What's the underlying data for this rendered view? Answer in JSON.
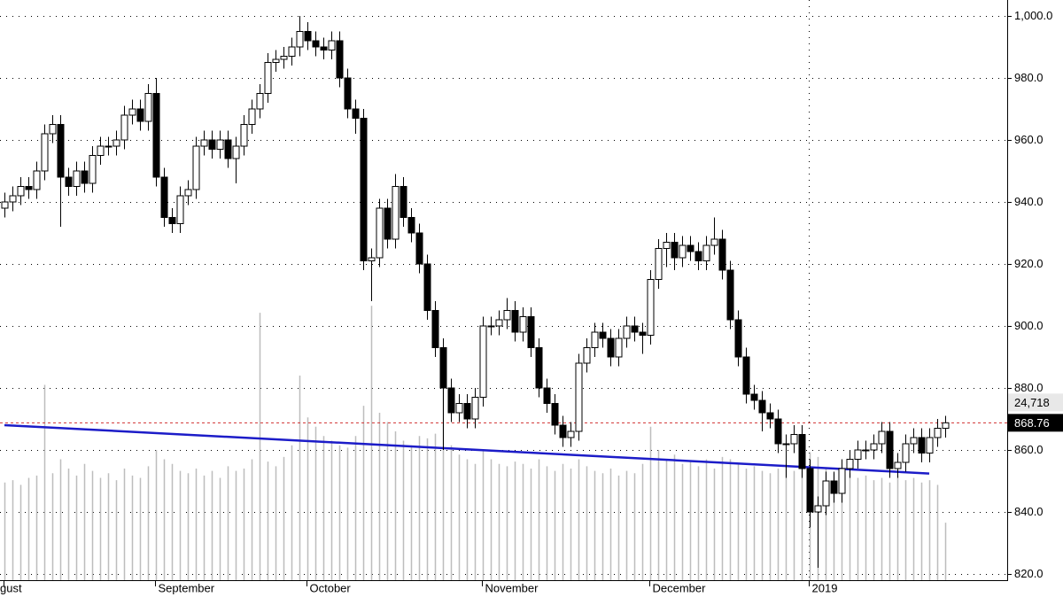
{
  "chart_data": {
    "type": "candlestick",
    "categories": [
      "gust",
      null,
      null,
      null,
      null,
      null,
      null,
      null,
      null,
      null,
      null,
      null,
      null,
      null,
      null,
      null,
      null,
      null,
      null,
      "September",
      null,
      null,
      null,
      null,
      null,
      null,
      null,
      null,
      null,
      null,
      null,
      null,
      null,
      null,
      null,
      null,
      null,
      null,
      "October",
      null,
      null,
      null,
      null,
      null,
      null,
      null,
      null,
      null,
      null,
      null,
      null,
      null,
      null,
      null,
      null,
      null,
      null,
      null,
      null,
      null,
      "November",
      null,
      null,
      null,
      null,
      null,
      null,
      null,
      null,
      null,
      null,
      null,
      null,
      null,
      null,
      null,
      null,
      null,
      null,
      null,
      null,
      "December",
      null,
      null,
      null,
      null,
      null,
      null,
      null,
      null,
      null,
      null,
      null,
      null,
      null,
      null,
      null,
      null,
      null,
      null,
      null,
      "2019",
      null,
      null,
      null,
      null,
      null,
      null,
      null,
      null,
      null,
      null,
      null,
      null,
      null,
      null,
      null,
      null,
      null
    ],
    "open": [
      938,
      940,
      942,
      945,
      944,
      950,
      962,
      965,
      948,
      945,
      950,
      946,
      955,
      958,
      958,
      960,
      968,
      970,
      966,
      975,
      948,
      935,
      933,
      942,
      944,
      958,
      960,
      957,
      960,
      954,
      958,
      965,
      970,
      975,
      985,
      986,
      987,
      990,
      995,
      992,
      990,
      989,
      992,
      980,
      970,
      967,
      921,
      922,
      938,
      928,
      945,
      935,
      930,
      920,
      905,
      893,
      880,
      872,
      875,
      870,
      877,
      900,
      900,
      902,
      905,
      898,
      903,
      893,
      880,
      875,
      868,
      864,
      866,
      888,
      893,
      898,
      896,
      890,
      896,
      900,
      898,
      897,
      915,
      925,
      927,
      922,
      926,
      924,
      921,
      926,
      928,
      918,
      902,
      890,
      878,
      876,
      872,
      870,
      862,
      862,
      865,
      854,
      840,
      842,
      850,
      846,
      854,
      857,
      860,
      860,
      862,
      866,
      854,
      856,
      862,
      864,
      859,
      864,
      867
    ],
    "high": [
      943,
      945,
      948,
      948,
      953,
      965,
      968,
      968,
      951,
      953,
      953,
      958,
      961,
      961,
      963,
      971,
      973,
      973,
      978,
      980,
      951,
      938,
      945,
      947,
      961,
      963,
      963,
      963,
      963,
      961,
      968,
      973,
      978,
      988,
      989,
      990,
      993,
      1000,
      998,
      995,
      993,
      995,
      995,
      983,
      973,
      970,
      925,
      941,
      941,
      949,
      948,
      938,
      933,
      923,
      908,
      896,
      883,
      878,
      878,
      880,
      903,
      903,
      905,
      909,
      908,
      906,
      906,
      896,
      883,
      878,
      871,
      869,
      891,
      896,
      901,
      901,
      899,
      899,
      903,
      903,
      901,
      918,
      928,
      930,
      930,
      929,
      929,
      927,
      929,
      935,
      931,
      921,
      905,
      893,
      881,
      879,
      875,
      873,
      865,
      868,
      868,
      857,
      845,
      853,
      853,
      857,
      860,
      863,
      863,
      865,
      869,
      869,
      859,
      865,
      867,
      867,
      867,
      870,
      871
    ],
    "low": [
      935,
      937,
      939,
      941,
      941,
      947,
      959,
      932,
      942,
      942,
      943,
      943,
      952,
      955,
      955,
      957,
      965,
      963,
      963,
      945,
      932,
      930,
      930,
      939,
      941,
      955,
      954,
      954,
      951,
      946,
      955,
      962,
      967,
      972,
      982,
      983,
      984,
      987,
      989,
      987,
      986,
      986,
      977,
      967,
      962,
      918,
      908,
      919,
      925,
      925,
      932,
      927,
      917,
      902,
      890,
      860,
      869,
      869,
      867,
      867,
      874,
      897,
      897,
      899,
      895,
      895,
      890,
      877,
      872,
      865,
      861,
      861,
      863,
      885,
      890,
      893,
      887,
      887,
      893,
      895,
      891,
      894,
      912,
      919,
      918,
      919,
      921,
      918,
      918,
      923,
      915,
      899,
      887,
      875,
      873,
      866,
      867,
      859,
      851,
      859,
      851,
      835,
      822,
      839,
      843,
      843,
      851,
      854,
      857,
      857,
      859,
      851,
      851,
      853,
      859,
      856,
      856,
      861,
      864
    ],
    "close": [
      940,
      942,
      945,
      944,
      950,
      962,
      965,
      948,
      945,
      950,
      946,
      955,
      958,
      958,
      960,
      968,
      970,
      966,
      975,
      948,
      935,
      933,
      942,
      944,
      958,
      960,
      957,
      960,
      954,
      958,
      965,
      970,
      975,
      985,
      986,
      987,
      990,
      995,
      992,
      990,
      989,
      992,
      980,
      970,
      967,
      921,
      922,
      938,
      928,
      945,
      935,
      930,
      920,
      905,
      893,
      880,
      872,
      875,
      870,
      877,
      900,
      900,
      902,
      905,
      898,
      903,
      893,
      880,
      875,
      868,
      864,
      866,
      888,
      893,
      898,
      896,
      890,
      896,
      900,
      898,
      897,
      915,
      925,
      927,
      922,
      926,
      924,
      921,
      926,
      928,
      918,
      902,
      890,
      878,
      876,
      872,
      870,
      862,
      862,
      865,
      854,
      840,
      842,
      850,
      846,
      854,
      857,
      860,
      860,
      862,
      866,
      854,
      856,
      862,
      864,
      859,
      864,
      867,
      868.76
    ],
    "up_color": "#ffffff",
    "down_color": "#000000",
    "volume": {
      "color": "#bdbdbd",
      "lim": [
        0,
        120000
      ],
      "values": [
        42000,
        43000,
        41000,
        44000,
        45000,
        84000,
        46000,
        52000,
        48000,
        45000,
        50000,
        47000,
        44000,
        46000,
        43000,
        48000,
        45000,
        44000,
        49000,
        56000,
        52000,
        50000,
        47000,
        46000,
        48000,
        45000,
        47000,
        44000,
        49000,
        47000,
        48000,
        52000,
        115000,
        51000,
        49000,
        53000,
        58000,
        88000,
        70000,
        66000,
        62000,
        60000,
        58000,
        57000,
        62000,
        75000,
        118000,
        72000,
        68000,
        64000,
        60000,
        58000,
        62000,
        61000,
        63000,
        95000,
        58000,
        54000,
        52000,
        50000,
        56000,
        52000,
        50000,
        49000,
        51000,
        50000,
        48000,
        52000,
        49000,
        47000,
        50000,
        48000,
        52000,
        49000,
        47000,
        46000,
        48000,
        45000,
        47000,
        46000,
        50000,
        66000,
        56000,
        52000,
        54000,
        50000,
        51000,
        49000,
        52000,
        48000,
        53000,
        52000,
        50000,
        48000,
        49000,
        47000,
        46000,
        48000,
        50000,
        47000,
        49000,
        55000,
        53000,
        48000,
        46000,
        45000,
        46000,
        44000,
        45000,
        43000,
        44000,
        42000,
        45000,
        43000,
        44000,
        42000,
        43000,
        41000,
        24718
      ],
      "value_labels": [
        null,
        null,
        null,
        null,
        null,
        null,
        null,
        null,
        null,
        null,
        null,
        null,
        null,
        null,
        null,
        null,
        null,
        null,
        null,
        null,
        null,
        null,
        null,
        null,
        null,
        null,
        null,
        null,
        null,
        null,
        null,
        null,
        null,
        null,
        null,
        null,
        null,
        null,
        null,
        null,
        null,
        null,
        null,
        null,
        null,
        null,
        null,
        null,
        null,
        null,
        null,
        null,
        null,
        null,
        null,
        null,
        null,
        null,
        null,
        null,
        null,
        null,
        null,
        null,
        null,
        null,
        null,
        null,
        null,
        null,
        null,
        null,
        null,
        null,
        null,
        null,
        null,
        null,
        null,
        null,
        null,
        null,
        null,
        null,
        null,
        null,
        null,
        null,
        null,
        null,
        null,
        null,
        null,
        null,
        null,
        null,
        null,
        null,
        null,
        null,
        null,
        null,
        null,
        null,
        null,
        null,
        null,
        null,
        null,
        null,
        null,
        null,
        null,
        null,
        null,
        null,
        null,
        null,
        "24,718"
      ]
    },
    "trendline": {
      "x": [
        0,
        116
      ],
      "values": [
        868,
        852.4
      ],
      "color": "#1c1cc8"
    },
    "last_price": 868.76,
    "last_price_color": "#d03030",
    "ylim": [
      820,
      1000
    ],
    "yticks": [
      {
        "value": 820,
        "label": "820.0"
      },
      {
        "value": 840,
        "label": "840.0"
      },
      {
        "value": 860,
        "label": "860.0"
      },
      {
        "value": 880,
        "label": "880.0"
      },
      {
        "value": 900,
        "label": "900.0"
      },
      {
        "value": 920,
        "label": "920.0"
      },
      {
        "value": 940,
        "label": "940.0"
      },
      {
        "value": 960,
        "label": "960.0"
      },
      {
        "value": 980,
        "label": "980.0"
      },
      {
        "value": 1000,
        "label": "1,000.0"
      }
    ],
    "grid": true,
    "year_grid": true
  }
}
